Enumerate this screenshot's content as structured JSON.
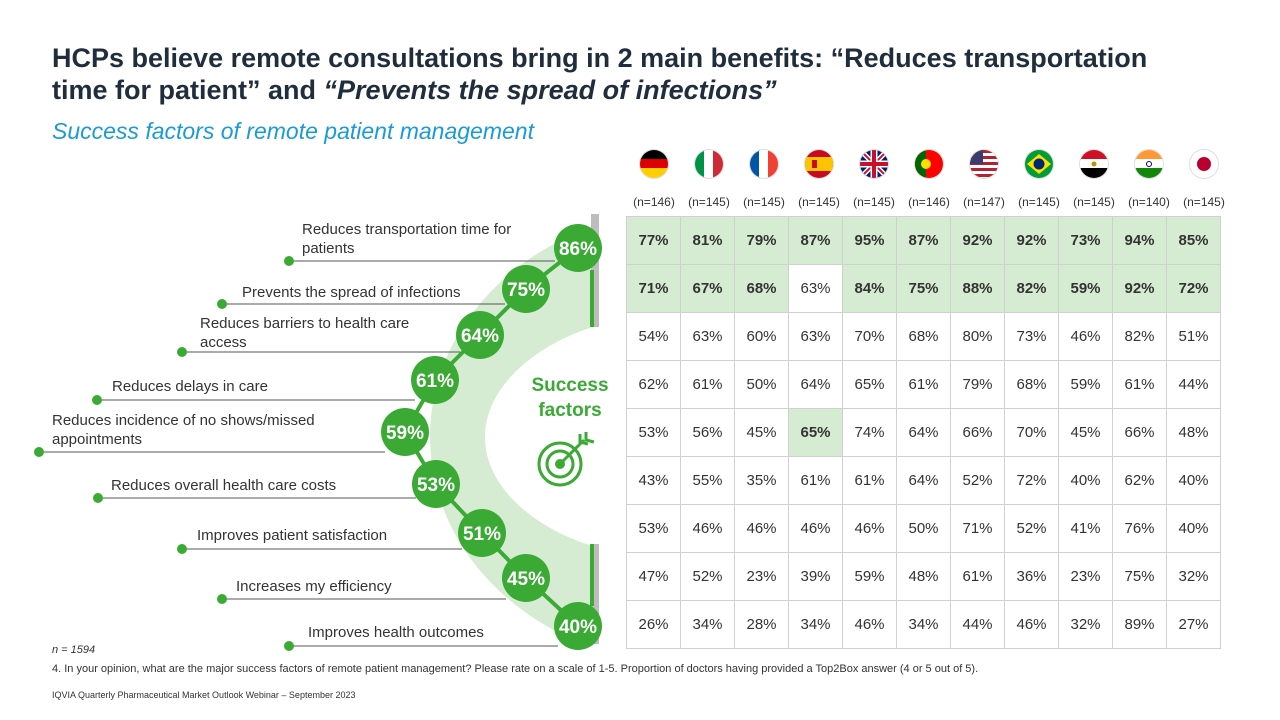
{
  "title": {
    "part1": "HCPs believe remote consultations bring in 2 main benefits: “Reduces transportation time for patient” and ",
    "part2": "“Prevents the spread of infections”"
  },
  "subtitle": "Success factors of remote patient management",
  "center": {
    "line1": "Success",
    "line2": "factors"
  },
  "colors": {
    "green": "#3aaa35",
    "light_green": "#d6ecd2",
    "title": "#1f2d3d",
    "subtitle": "#1a9bd7"
  },
  "chart_data": {
    "type": "table",
    "factors": [
      {
        "label": "Reduces transportation time for patients",
        "total": "86%"
      },
      {
        "label": "Prevents the spread of infections",
        "total": "75%"
      },
      {
        "label": "Reduces barriers to health care access",
        "total": "64%"
      },
      {
        "label": "Reduces delays in care",
        "total": "61%"
      },
      {
        "label": "Reduces incidence of no shows/missed appointments",
        "total": "59%"
      },
      {
        "label": "Reduces overall health care costs",
        "total": "53%"
      },
      {
        "label": "Improves patient satisfaction",
        "total": "51%"
      },
      {
        "label": "Increases my efficiency",
        "total": "45%"
      },
      {
        "label": "Improves health outcomes",
        "total": "40%"
      }
    ],
    "countries": [
      {
        "flag": "germany-flag",
        "n": "(n=146)"
      },
      {
        "flag": "italy-flag",
        "n": "(n=145)"
      },
      {
        "flag": "france-flag",
        "n": "(n=145)"
      },
      {
        "flag": "spain-flag",
        "n": "(n=145)"
      },
      {
        "flag": "uk-flag",
        "n": "(n=145)"
      },
      {
        "flag": "portugal-flag",
        "n": "(n=146)"
      },
      {
        "flag": "usa-flag",
        "n": "(n=147)"
      },
      {
        "flag": "brazil-flag",
        "n": "(n=145)"
      },
      {
        "flag": "egypt-flag",
        "n": "(n=145)"
      },
      {
        "flag": "india-flag",
        "n": "(n=140)"
      },
      {
        "flag": "japan-flag",
        "n": "(n=145)"
      }
    ],
    "rows": [
      [
        "77%",
        "81%",
        "79%",
        "87%",
        "95%",
        "87%",
        "92%",
        "92%",
        "73%",
        "94%",
        "85%"
      ],
      [
        "71%",
        "67%",
        "68%",
        "63%",
        "84%",
        "75%",
        "88%",
        "82%",
        "59%",
        "92%",
        "72%"
      ],
      [
        "54%",
        "63%",
        "60%",
        "63%",
        "70%",
        "68%",
        "80%",
        "73%",
        "46%",
        "82%",
        "51%"
      ],
      [
        "62%",
        "61%",
        "50%",
        "64%",
        "65%",
        "61%",
        "79%",
        "68%",
        "59%",
        "61%",
        "44%"
      ],
      [
        "53%",
        "56%",
        "45%",
        "65%",
        "74%",
        "64%",
        "66%",
        "70%",
        "45%",
        "66%",
        "48%"
      ],
      [
        "43%",
        "55%",
        "35%",
        "61%",
        "61%",
        "64%",
        "52%",
        "72%",
        "40%",
        "62%",
        "40%"
      ],
      [
        "53%",
        "46%",
        "46%",
        "46%",
        "46%",
        "50%",
        "71%",
        "52%",
        "41%",
        "76%",
        "40%"
      ],
      [
        "47%",
        "52%",
        "23%",
        "39%",
        "59%",
        "48%",
        "61%",
        "36%",
        "23%",
        "75%",
        "32%"
      ],
      [
        "26%",
        "34%",
        "28%",
        "34%",
        "46%",
        "34%",
        "44%",
        "46%",
        "32%",
        "89%",
        "27%"
      ]
    ],
    "highlighted": [
      [
        true,
        true,
        true,
        true,
        true,
        true,
        true,
        true,
        true,
        true,
        true
      ],
      [
        true,
        true,
        true,
        false,
        true,
        true,
        true,
        true,
        true,
        true,
        true
      ],
      [
        false,
        false,
        false,
        false,
        false,
        false,
        false,
        false,
        false,
        false,
        false
      ],
      [
        false,
        false,
        false,
        false,
        false,
        false,
        false,
        false,
        false,
        false,
        false
      ],
      [
        false,
        false,
        false,
        true,
        false,
        false,
        false,
        false,
        false,
        false,
        false
      ],
      [
        false,
        false,
        false,
        false,
        false,
        false,
        false,
        false,
        false,
        false,
        false
      ],
      [
        false,
        false,
        false,
        false,
        false,
        false,
        false,
        false,
        false,
        false,
        false
      ],
      [
        false,
        false,
        false,
        false,
        false,
        false,
        false,
        false,
        false,
        false,
        false
      ],
      [
        false,
        false,
        false,
        false,
        false,
        false,
        false,
        false,
        false,
        false,
        false
      ]
    ]
  },
  "n_total": "n = 1594",
  "footnote": "4. In your opinion, what are the major success factors of remote patient management? Please rate on a scale of 1-5. Proportion of doctors having provided a Top2Box answer (4 or 5 out of 5).",
  "source": "IQVIA Quarterly Pharmaceutical Market Outlook Webinar – September 2023"
}
